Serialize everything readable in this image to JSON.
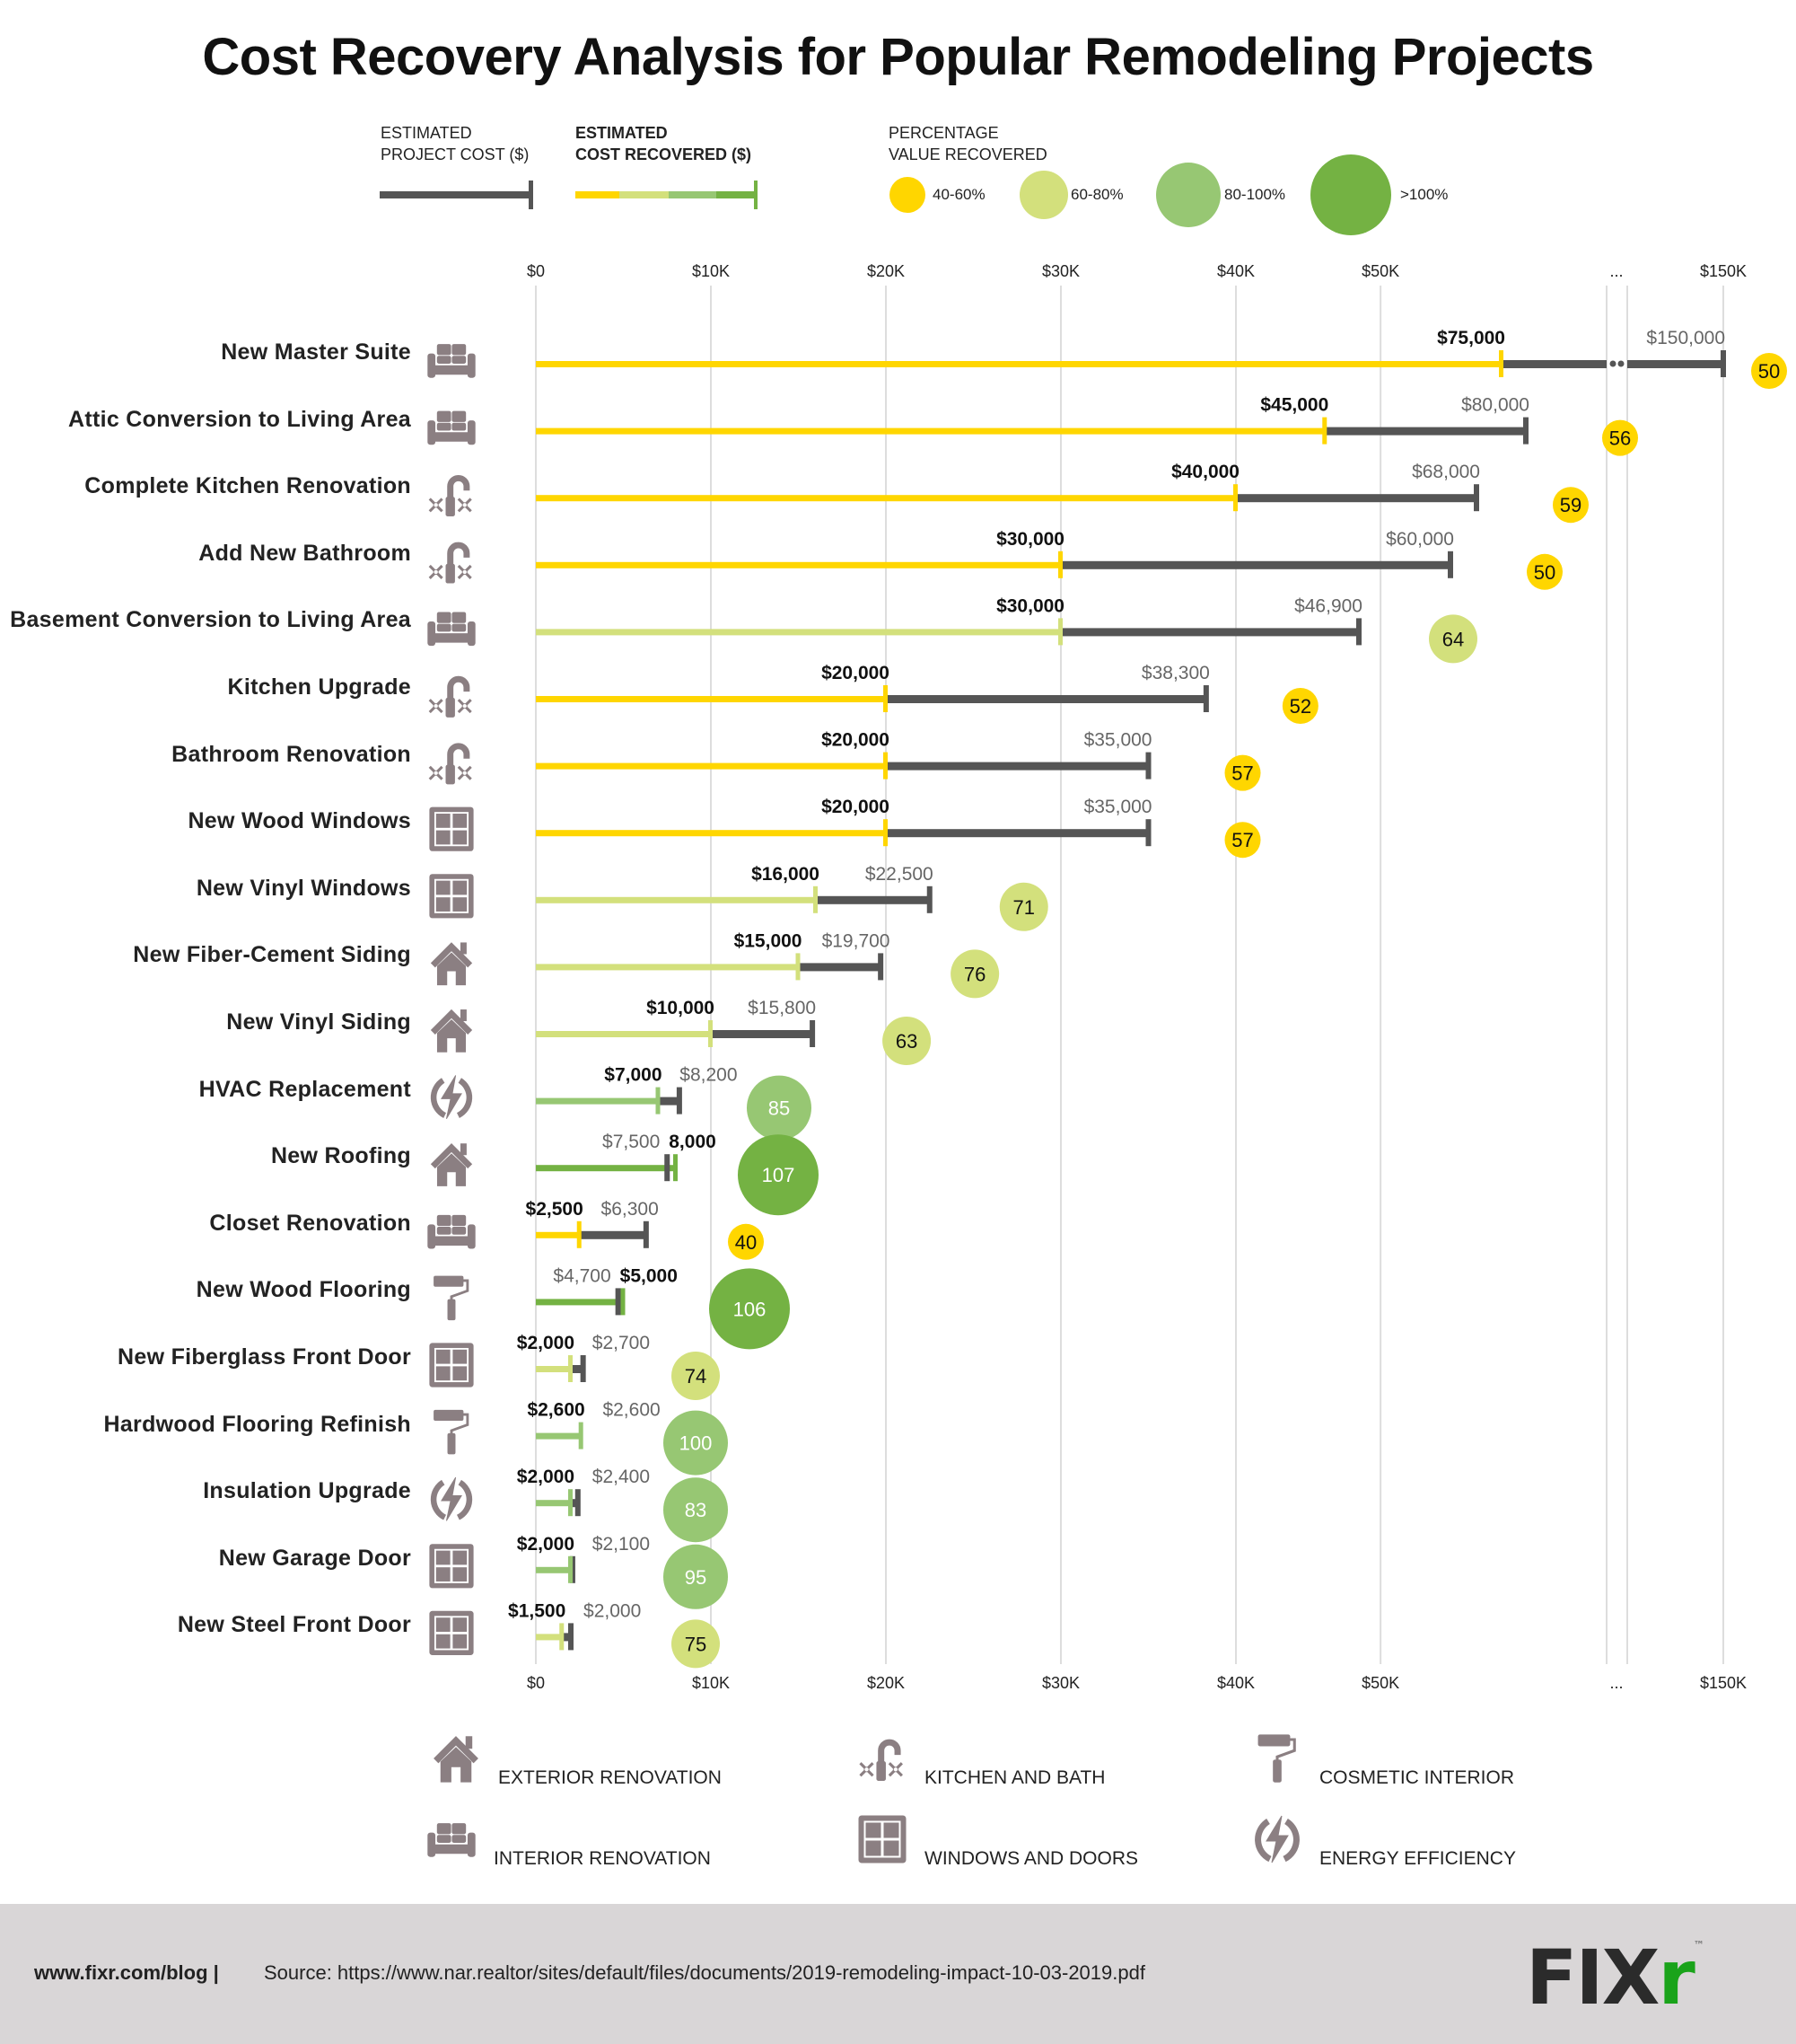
{
  "title": "Cost Recovery Analysis for Popular Remodeling Projects",
  "legend": {
    "project_cost_label": [
      "ESTIMATED",
      "PROJECT COST ($)"
    ],
    "cost_recovered_label": [
      "ESTIMATED",
      "COST RECOVERED ($)"
    ],
    "percentage_label": [
      "PERCENTAGE",
      "VALUE RECOVERED"
    ],
    "ranges": [
      {
        "label": "40-60%",
        "color": "#ffd600"
      },
      {
        "label": "60-80%",
        "color": "#d3e07c"
      },
      {
        "label": "80-100%",
        "color": "#97c773"
      },
      {
        "label": ">100%",
        "color": "#74b243"
      }
    ]
  },
  "colors": {
    "cost_bar": "#555555",
    "grid": "#dddddd",
    "icon": "#8b7f82",
    "footer_bg": "#d9d6d7",
    "logo_green": "#1aa31a"
  },
  "categories_legend": [
    {
      "icon": "house-icon",
      "label": "EXTERIOR RENOVATION"
    },
    {
      "icon": "faucet-icon",
      "label": "KITCHEN AND BATH"
    },
    {
      "icon": "paint-roller-icon",
      "label": "COSMETIC INTERIOR"
    },
    {
      "icon": "sofa-icon",
      "label": "INTERIOR RENOVATION"
    },
    {
      "icon": "window-icon",
      "label": "WINDOWS AND DOORS"
    },
    {
      "icon": "energy-icon",
      "label": "ENERGY EFFICIENCY"
    }
  ],
  "footer": {
    "site": "www.fixr.com/blog |",
    "source": "Source: https://www.nar.realtor/sites/default/files/documents/2019-remodeling-impact-10-03-2019.pdf",
    "logo_main": "FIX",
    "logo_accent": "r",
    "logo_tm": "™"
  },
  "chart_data": {
    "type": "bar",
    "title": "Cost Recovery Analysis for Popular Remodeling Projects",
    "xlabel": "",
    "ylabel": "",
    "x_ticks": [
      "$0",
      "$10K",
      "$20K",
      "$30K",
      "$40K",
      "$50K",
      "...",
      "$150K"
    ],
    "x_tick_values": [
      0,
      10000,
      20000,
      30000,
      40000,
      50000,
      null,
      150000
    ],
    "xlim": [
      0,
      150000
    ],
    "axis_break": "between $50K and $150K",
    "grid": true,
    "legend_position": "top",
    "series": [
      {
        "name": "Estimated Project Cost ($)",
        "key": "cost"
      },
      {
        "name": "Estimated Cost Recovered ($)",
        "key": "recovered"
      },
      {
        "name": "Percentage Value Recovered",
        "key": "pct"
      }
    ],
    "categories": [
      "New Master Suite",
      "Attic Conversion to Living Area",
      "Complete Kitchen Renovation",
      "Add New Bathroom",
      "Basement Conversion to Living Area",
      "Kitchen Upgrade",
      "Bathroom Renovation",
      "New Wood Windows",
      "New Vinyl Windows",
      "New Fiber-Cement Siding",
      "New Vinyl Siding",
      "HVAC Replacement",
      "New Roofing",
      "Closet Renovation",
      "New Wood Flooring",
      "New Fiberglass Front Door",
      "Hardwood Flooring Refinish",
      "Insulation Upgrade",
      "New Garage Door",
      "New Steel Front Door"
    ],
    "rows": [
      {
        "name": "New Master Suite",
        "icon": "sofa-icon",
        "cost": 150000,
        "recovered": 75000,
        "pct": 50,
        "cost_label": "$150,000",
        "rec_label": "$75,000"
      },
      {
        "name": "Attic Conversion to Living Area",
        "icon": "sofa-icon",
        "cost": 80000,
        "recovered": 45000,
        "pct": 56,
        "cost_label": "$80,000",
        "rec_label": "$45,000"
      },
      {
        "name": "Complete Kitchen Renovation",
        "icon": "faucet-icon",
        "cost": 68000,
        "recovered": 40000,
        "pct": 59,
        "cost_label": "$68,000",
        "rec_label": "$40,000"
      },
      {
        "name": "Add New Bathroom",
        "icon": "faucet-icon",
        "cost": 60000,
        "recovered": 30000,
        "pct": 50,
        "cost_label": "$60,000",
        "rec_label": "$30,000"
      },
      {
        "name": "Basement Conversion to Living Area",
        "icon": "sofa-icon",
        "cost": 46900,
        "recovered": 30000,
        "pct": 64,
        "cost_label": "$46,900",
        "rec_label": "$30,000"
      },
      {
        "name": "Kitchen Upgrade",
        "icon": "faucet-icon",
        "cost": 38300,
        "recovered": 20000,
        "pct": 52,
        "cost_label": "$38,300",
        "rec_label": "$20,000"
      },
      {
        "name": "Bathroom Renovation",
        "icon": "faucet-icon",
        "cost": 35000,
        "recovered": 20000,
        "pct": 57,
        "cost_label": "$35,000",
        "rec_label": "$20,000"
      },
      {
        "name": "New Wood Windows",
        "icon": "window-icon",
        "cost": 35000,
        "recovered": 20000,
        "pct": 57,
        "cost_label": "$35,000",
        "rec_label": "$20,000"
      },
      {
        "name": "New Vinyl Windows",
        "icon": "window-icon",
        "cost": 22500,
        "recovered": 16000,
        "pct": 71,
        "cost_label": "$22,500",
        "rec_label": "$16,000"
      },
      {
        "name": "New Fiber-Cement Siding",
        "icon": "house-icon",
        "cost": 19700,
        "recovered": 15000,
        "pct": 76,
        "cost_label": "$19,700",
        "rec_label": "$15,000"
      },
      {
        "name": "New Vinyl Siding",
        "icon": "house-icon",
        "cost": 15800,
        "recovered": 10000,
        "pct": 63,
        "cost_label": "$15,800",
        "rec_label": "$10,000"
      },
      {
        "name": "HVAC Replacement",
        "icon": "energy-icon",
        "cost": 8200,
        "recovered": 7000,
        "pct": 85,
        "cost_label": "$8,200",
        "rec_label": "$7,000"
      },
      {
        "name": "New Roofing",
        "icon": "house-icon",
        "cost": 7500,
        "recovered": 8000,
        "pct": 107,
        "cost_label": "$7,500",
        "rec_label": "8,000"
      },
      {
        "name": "Closet Renovation",
        "icon": "sofa-icon",
        "cost": 6300,
        "recovered": 2500,
        "pct": 40,
        "cost_label": "$6,300",
        "rec_label": "$2,500"
      },
      {
        "name": "New Wood Flooring",
        "icon": "paint-roller-icon",
        "cost": 4700,
        "recovered": 5000,
        "pct": 106,
        "cost_label": "$4,700",
        "rec_label": "$5,000"
      },
      {
        "name": "New Fiberglass Front Door",
        "icon": "window-icon",
        "cost": 2700,
        "recovered": 2000,
        "pct": 74,
        "cost_label": "$2,700",
        "rec_label": "$2,000"
      },
      {
        "name": "Hardwood Flooring Refinish",
        "icon": "paint-roller-icon",
        "cost": 2600,
        "recovered": 2600,
        "pct": 100,
        "cost_label": "$2,600",
        "rec_label": "$2,600"
      },
      {
        "name": "Insulation Upgrade",
        "icon": "energy-icon",
        "cost": 2400,
        "recovered": 2000,
        "pct": 83,
        "cost_label": "$2,400",
        "rec_label": "$2,000"
      },
      {
        "name": "New Garage Door",
        "icon": "window-icon",
        "cost": 2100,
        "recovered": 2000,
        "pct": 95,
        "cost_label": "$2,100",
        "rec_label": "$2,000"
      },
      {
        "name": "New Steel Front Door",
        "icon": "window-icon",
        "cost": 2000,
        "recovered": 1500,
        "pct": 75,
        "cost_label": "$2,000",
        "rec_label": "$1,500"
      }
    ]
  }
}
